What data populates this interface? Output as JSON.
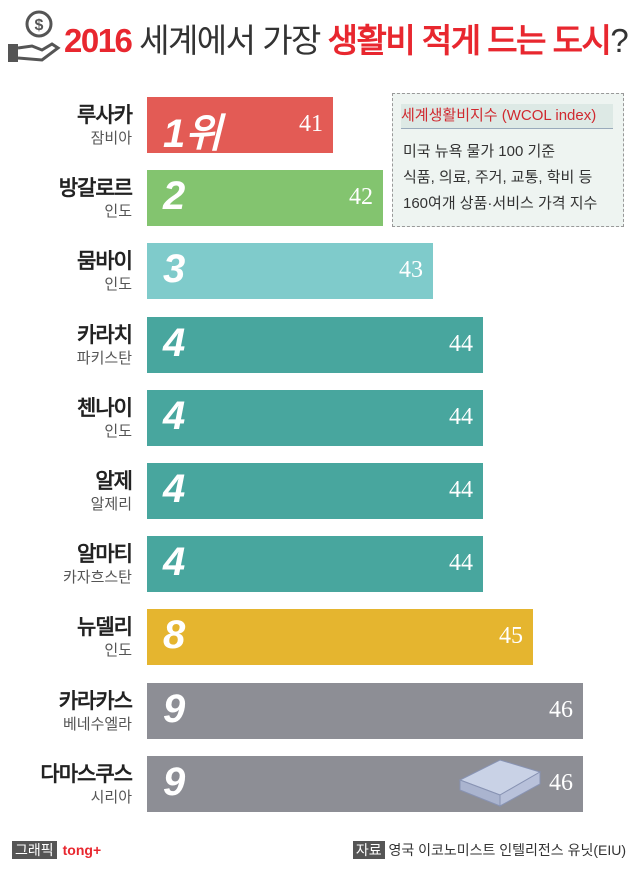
{
  "title": {
    "year": "2016",
    "mid": " 세계에서 가장 ",
    "highlight": "생활비 적게 드는 도시",
    "end": "?"
  },
  "legend": {
    "title": "세계생활비지수 (WCOL index)",
    "lines": [
      "미국 뉴욕 물가 100 기준",
      "식품, 의료, 주거, 교통, 학비 등",
      "160여개 상품·서비스 가격 지수"
    ]
  },
  "chart_data": {
    "type": "bar",
    "orientation": "horizontal",
    "categories": [
      "루사카",
      "방갈로르",
      "뭄바이",
      "카라치",
      "첸나이",
      "알제",
      "알마티",
      "뉴델리",
      "카라카스",
      "다마스쿠스"
    ],
    "countries": [
      "잠비아",
      "인도",
      "인도",
      "파키스탄",
      "인도",
      "알제리",
      "카자흐스탄",
      "인도",
      "베네수엘라",
      "시리아"
    ],
    "ranks": [
      "1위",
      "2",
      "3",
      "4",
      "4",
      "4",
      "4",
      "8",
      "9",
      "9"
    ],
    "values": [
      41,
      42,
      43,
      44,
      44,
      44,
      44,
      45,
      46,
      46
    ],
    "colors": [
      "#e35b55",
      "#83c46f",
      "#7fcbcb",
      "#48a69e",
      "#48a69e",
      "#48a69e",
      "#48a69e",
      "#e5b52f",
      "#8d8e95",
      "#8d8e95"
    ]
  },
  "watermark": "tong+",
  "footer": {
    "graphic_label": "그래픽",
    "brand": "tong+",
    "source_label": "자료",
    "source": "영국 이코노미스트 인텔리전스 유닛(EIU)"
  }
}
